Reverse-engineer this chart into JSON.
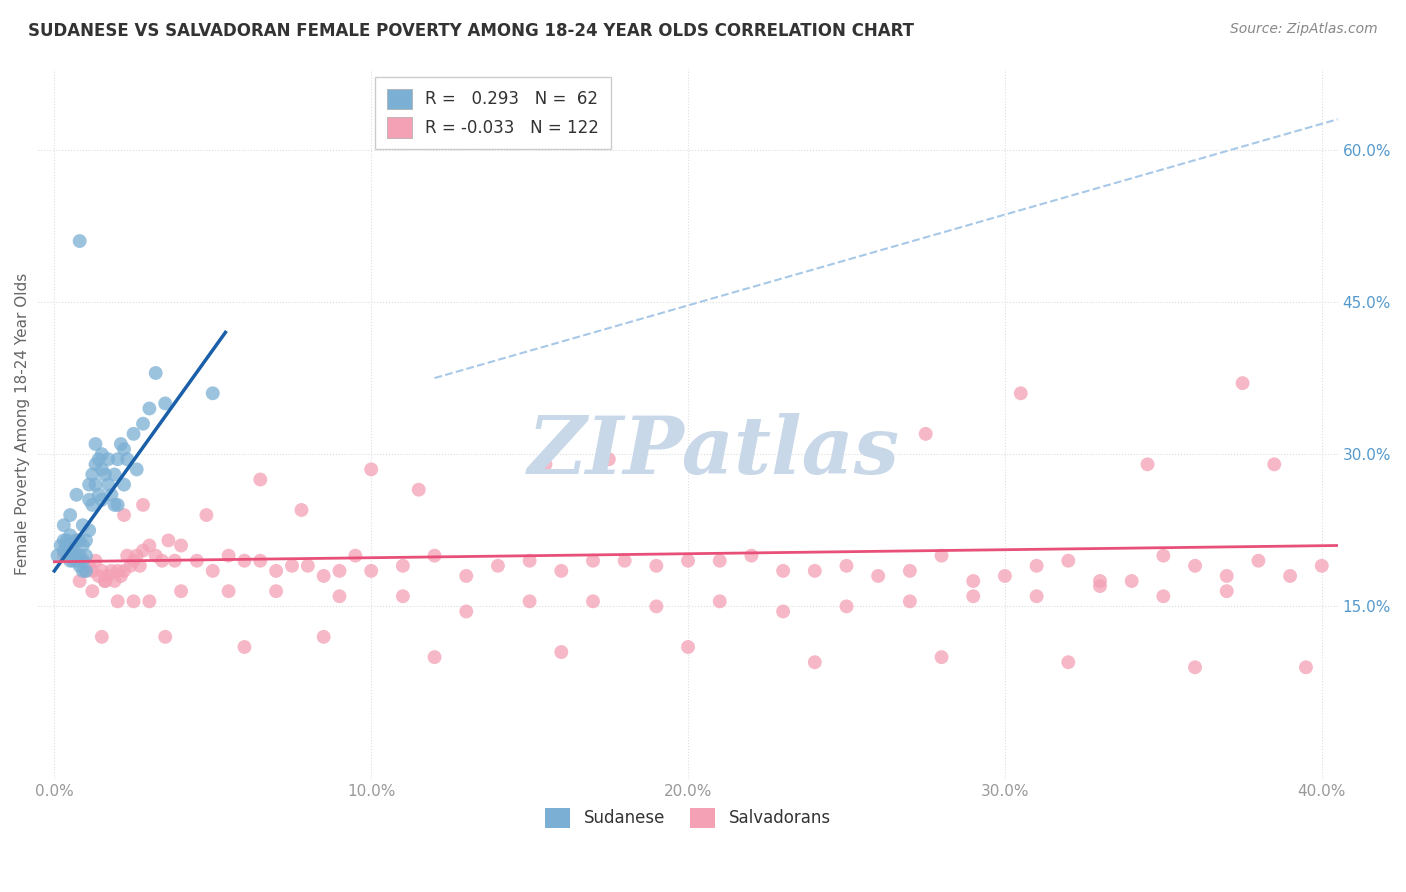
{
  "title": "SUDANESE VS SALVADORAN FEMALE POVERTY AMONG 18-24 YEAR OLDS CORRELATION CHART",
  "source": "Source: ZipAtlas.com",
  "ylabel": "Female Poverty Among 18-24 Year Olds",
  "xlabel_ticks": [
    "0.0%",
    "10.0%",
    "20.0%",
    "30.0%",
    "40.0%"
  ],
  "xlabel_vals": [
    0.0,
    0.1,
    0.2,
    0.3,
    0.4
  ],
  "ylabel_ticks_right": [
    "60.0%",
    "45.0%",
    "30.0%",
    "15.0%"
  ],
  "ylabel_vals_right": [
    0.6,
    0.45,
    0.3,
    0.15
  ],
  "xlim": [
    -0.005,
    0.405
  ],
  "ylim": [
    -0.02,
    0.68
  ],
  "legend_r_sudanese": "0.293",
  "legend_n_sudanese": "62",
  "legend_r_salvadoran": "-0.033",
  "legend_n_salvadoran": "122",
  "sudanese_color": "#7BAFD4",
  "salvadoran_color": "#F4A0B5",
  "sudanese_line_color": "#1A5FA8",
  "salvadoran_line_color": "#E8507A",
  "dashed_line_color": "#A8C8E8",
  "watermark": "ZIPatlas",
  "watermark_color": "#C8D8E8",
  "grid_color": "#DDDDDD",
  "sudanese_x": [
    0.001,
    0.002,
    0.003,
    0.003,
    0.004,
    0.004,
    0.004,
    0.005,
    0.005,
    0.005,
    0.006,
    0.006,
    0.006,
    0.007,
    0.007,
    0.007,
    0.008,
    0.008,
    0.008,
    0.009,
    0.009,
    0.009,
    0.01,
    0.01,
    0.01,
    0.011,
    0.011,
    0.012,
    0.012,
    0.013,
    0.013,
    0.014,
    0.014,
    0.015,
    0.015,
    0.016,
    0.017,
    0.018,
    0.019,
    0.02,
    0.02,
    0.021,
    0.022,
    0.023,
    0.025,
    0.026,
    0.028,
    0.03,
    0.032,
    0.035,
    0.003,
    0.005,
    0.007,
    0.009,
    0.011,
    0.013,
    0.015,
    0.017,
    0.019,
    0.022,
    0.05,
    0.008
  ],
  "sudanese_y": [
    0.2,
    0.21,
    0.205,
    0.215,
    0.2,
    0.21,
    0.215,
    0.195,
    0.205,
    0.22,
    0.195,
    0.2,
    0.21,
    0.195,
    0.2,
    0.215,
    0.19,
    0.2,
    0.215,
    0.185,
    0.195,
    0.21,
    0.185,
    0.2,
    0.215,
    0.225,
    0.27,
    0.25,
    0.28,
    0.29,
    0.31,
    0.295,
    0.26,
    0.255,
    0.3,
    0.28,
    0.27,
    0.26,
    0.28,
    0.295,
    0.25,
    0.31,
    0.305,
    0.295,
    0.32,
    0.285,
    0.33,
    0.345,
    0.38,
    0.35,
    0.23,
    0.24,
    0.26,
    0.23,
    0.255,
    0.27,
    0.285,
    0.295,
    0.25,
    0.27,
    0.36,
    0.51
  ],
  "salvadoran_x": [
    0.003,
    0.005,
    0.007,
    0.008,
    0.009,
    0.01,
    0.011,
    0.012,
    0.013,
    0.014,
    0.015,
    0.016,
    0.017,
    0.018,
    0.019,
    0.02,
    0.021,
    0.022,
    0.023,
    0.024,
    0.025,
    0.026,
    0.027,
    0.028,
    0.03,
    0.032,
    0.034,
    0.036,
    0.038,
    0.04,
    0.045,
    0.05,
    0.055,
    0.06,
    0.065,
    0.07,
    0.075,
    0.08,
    0.085,
    0.09,
    0.095,
    0.1,
    0.11,
    0.12,
    0.13,
    0.14,
    0.15,
    0.16,
    0.17,
    0.18,
    0.19,
    0.2,
    0.21,
    0.22,
    0.23,
    0.24,
    0.25,
    0.26,
    0.27,
    0.28,
    0.29,
    0.3,
    0.31,
    0.32,
    0.33,
    0.34,
    0.35,
    0.36,
    0.37,
    0.38,
    0.39,
    0.4,
    0.008,
    0.012,
    0.016,
    0.02,
    0.025,
    0.03,
    0.04,
    0.055,
    0.07,
    0.09,
    0.11,
    0.13,
    0.15,
    0.17,
    0.19,
    0.21,
    0.23,
    0.25,
    0.27,
    0.29,
    0.31,
    0.33,
    0.35,
    0.37,
    0.015,
    0.035,
    0.06,
    0.085,
    0.12,
    0.16,
    0.2,
    0.24,
    0.28,
    0.32,
    0.36,
    0.395,
    0.022,
    0.048,
    0.078,
    0.115,
    0.155,
    0.275,
    0.345,
    0.385,
    0.028,
    0.065,
    0.1,
    0.175,
    0.305,
    0.375
  ],
  "salvadoran_y": [
    0.2,
    0.205,
    0.215,
    0.2,
    0.195,
    0.185,
    0.19,
    0.185,
    0.195,
    0.18,
    0.185,
    0.175,
    0.18,
    0.185,
    0.175,
    0.185,
    0.18,
    0.185,
    0.2,
    0.19,
    0.195,
    0.2,
    0.19,
    0.205,
    0.21,
    0.2,
    0.195,
    0.215,
    0.195,
    0.21,
    0.195,
    0.185,
    0.2,
    0.195,
    0.195,
    0.185,
    0.19,
    0.19,
    0.18,
    0.185,
    0.2,
    0.185,
    0.19,
    0.2,
    0.18,
    0.19,
    0.195,
    0.185,
    0.195,
    0.195,
    0.19,
    0.195,
    0.195,
    0.2,
    0.185,
    0.185,
    0.19,
    0.18,
    0.185,
    0.2,
    0.175,
    0.18,
    0.19,
    0.195,
    0.175,
    0.175,
    0.2,
    0.19,
    0.18,
    0.195,
    0.18,
    0.19,
    0.175,
    0.165,
    0.175,
    0.155,
    0.155,
    0.155,
    0.165,
    0.165,
    0.165,
    0.16,
    0.16,
    0.145,
    0.155,
    0.155,
    0.15,
    0.155,
    0.145,
    0.15,
    0.155,
    0.16,
    0.16,
    0.17,
    0.16,
    0.165,
    0.12,
    0.12,
    0.11,
    0.12,
    0.1,
    0.105,
    0.11,
    0.095,
    0.1,
    0.095,
    0.09,
    0.09,
    0.24,
    0.24,
    0.245,
    0.265,
    0.29,
    0.32,
    0.29,
    0.29,
    0.25,
    0.275,
    0.285,
    0.295,
    0.36,
    0.37
  ],
  "sudanese_line_x": [
    0.0,
    0.054
  ],
  "sudanese_line_y": [
    0.185,
    0.42
  ],
  "salvadoran_line_x": [
    0.0,
    0.405
  ],
  "salvadoran_line_y": [
    0.194,
    0.21
  ],
  "dash_line_x": [
    0.12,
    0.405
  ],
  "dash_line_y": [
    0.375,
    0.63
  ]
}
